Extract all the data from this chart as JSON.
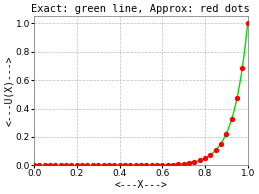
{
  "title": "Exact: green line, Approx: red dots",
  "xlabel": "<---X--->",
  "ylabel": "<---U(X)--->",
  "xlim": [
    0,
    1
  ],
  "ylim": [
    0,
    1.05
  ],
  "n_points": 41,
  "Pe": 15,
  "background_color": "#ffffff",
  "plot_bg_color": "#ffffff",
  "exact_color": "#00dd00",
  "approx_color": "#ff0000",
  "grid_color": "#aaaaaa",
  "title_fontsize": 7.5,
  "label_fontsize": 7,
  "tick_fontsize": 6.5,
  "xticks": [
    0,
    0.2,
    0.4,
    0.6,
    0.8,
    1.0
  ],
  "yticks": [
    0,
    0.2,
    0.4,
    0.6,
    0.8,
    1.0
  ]
}
